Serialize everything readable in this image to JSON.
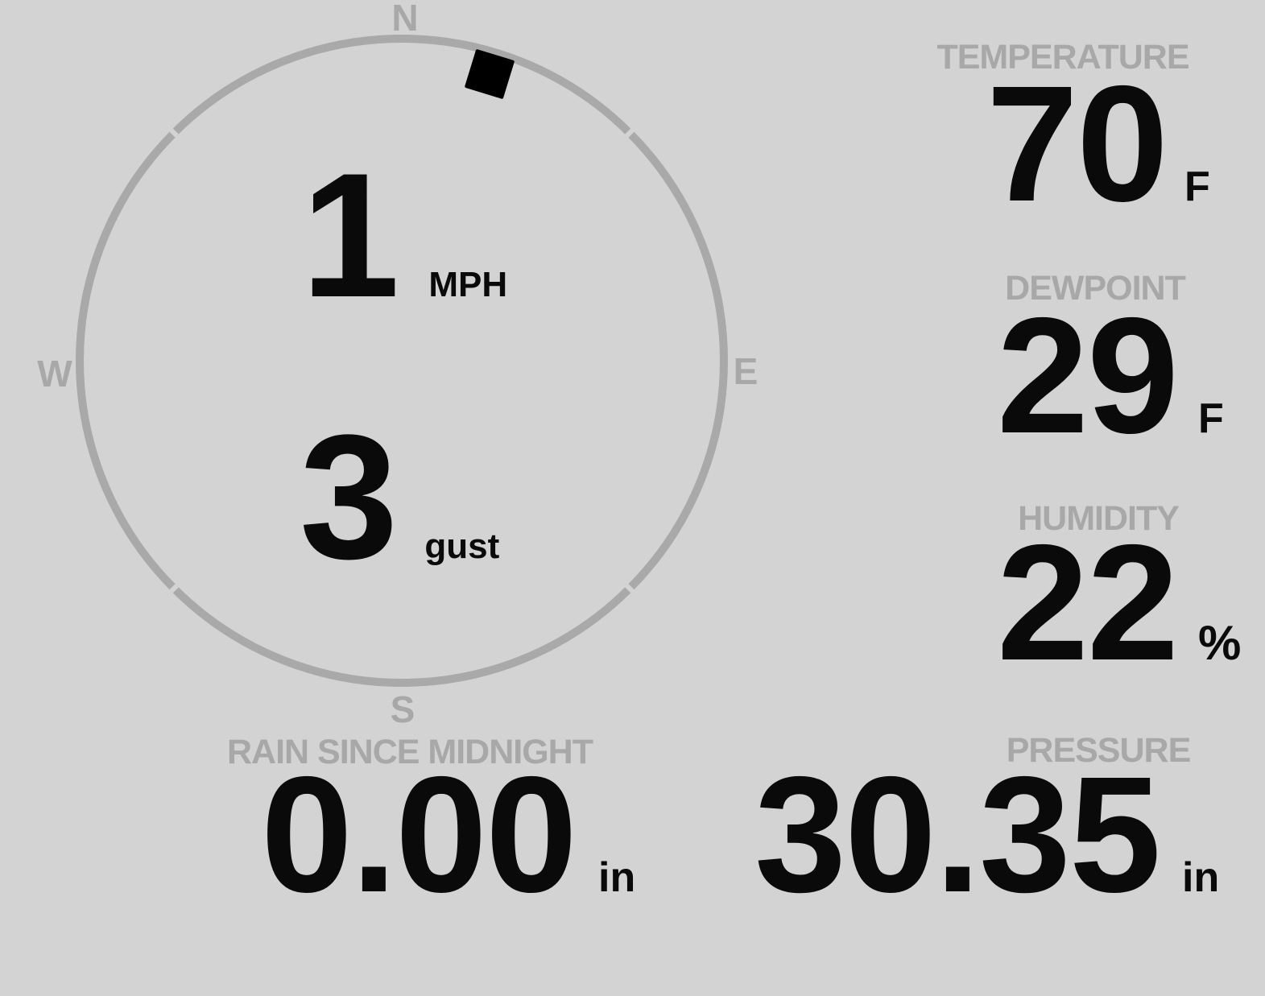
{
  "colors": {
    "background": "#d3d3d3",
    "label_gray": "#a8a8a8",
    "ring_gray": "#a9a9a9",
    "value_black": "#0a0a0a"
  },
  "compass": {
    "cardinals": {
      "north": "N",
      "east": "E",
      "south": "S",
      "west": "W"
    },
    "wind_speed": {
      "value": "1",
      "unit": "MPH"
    },
    "wind_gust": {
      "value": "3",
      "unit": "gust"
    },
    "direction_degrees": 17
  },
  "metrics": {
    "temperature": {
      "label": "TEMPERATURE",
      "value": "70",
      "unit": "F"
    },
    "dewpoint": {
      "label": "DEWPOINT",
      "value": "29",
      "unit": "F"
    },
    "humidity": {
      "label": "HUMIDITY",
      "value": "22",
      "unit": "%"
    },
    "rain": {
      "label": "RAIN SINCE MIDNIGHT",
      "value": "0.00",
      "unit": "in"
    },
    "pressure": {
      "label": "PRESSURE",
      "value": "30.35",
      "unit": "in"
    }
  }
}
